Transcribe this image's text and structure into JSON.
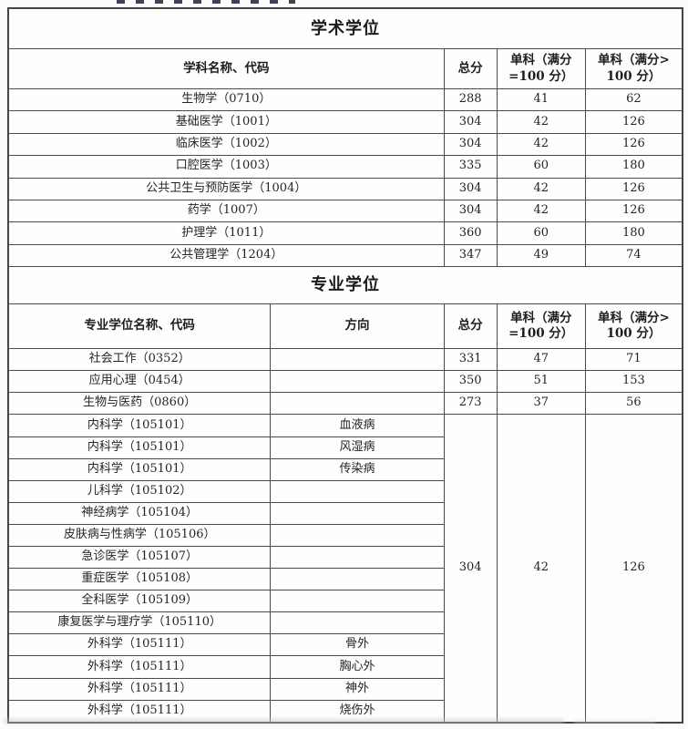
{
  "academic": {
    "title": "学术学位",
    "headers": [
      "学科名称、代码",
      "总分",
      "单科（满分\n=100 分）",
      "单科（满分>\n100 分）"
    ],
    "rows": [
      {
        "name": "生物学（0710）",
        "total": "288",
        "single100": "41",
        "singleOver100": "62"
      },
      {
        "name": "基础医学（1001）",
        "total": "304",
        "single100": "42",
        "singleOver100": "126"
      },
      {
        "name": "临床医学（1002）",
        "total": "304",
        "single100": "42",
        "singleOver100": "126"
      },
      {
        "name": "口腔医学（1003）",
        "total": "335",
        "single100": "60",
        "singleOver100": "180"
      },
      {
        "name": "公共卫生与预防医学（1004）",
        "total": "304",
        "single100": "42",
        "singleOver100": "126"
      },
      {
        "name": "药学（1007）",
        "total": "304",
        "single100": "42",
        "singleOver100": "126"
      },
      {
        "name": "护理学（1011）",
        "total": "360",
        "single100": "60",
        "singleOver100": "180"
      },
      {
        "name": "公共管理学（1204）",
        "total": "347",
        "single100": "49",
        "singleOver100": "74"
      }
    ]
  },
  "professional": {
    "title": "专业学位",
    "headers": [
      "专业学位名称、代码",
      "方向",
      "总分",
      "单科（满分\n=100 分）",
      "单科（满分>\n100 分）"
    ],
    "rows": [
      {
        "name": "社会工作（0352）",
        "direction": "",
        "total": "331",
        "single100": "47",
        "singleOver100": "71"
      },
      {
        "name": "应用心理（0454）",
        "direction": "",
        "total": "350",
        "single100": "51",
        "singleOver100": "153"
      },
      {
        "name": "生物与医药（0860）",
        "direction": "",
        "total": "273",
        "single100": "37",
        "singleOver100": "56"
      },
      {
        "name": "内科学（105101）",
        "direction": "血液病",
        "merged_start": true
      },
      {
        "name": "内科学（105101）",
        "direction": "风湿病"
      },
      {
        "name": "内科学（105101）",
        "direction": "传染病"
      },
      {
        "name": "儿科学（105102）",
        "direction": ""
      },
      {
        "name": "神经病学（105104）",
        "direction": ""
      },
      {
        "name": "皮肤病与性病学（105106）",
        "direction": ""
      },
      {
        "name": "急诊医学（105107）",
        "direction": ""
      },
      {
        "name": "重症医学（105108）",
        "direction": ""
      },
      {
        "name": "全科医学（105109）",
        "direction": ""
      },
      {
        "name": "康复医学与理疗学（105110）",
        "direction": ""
      },
      {
        "name": "外科学（105111）",
        "direction": "骨外"
      },
      {
        "name": "外科学（105111）",
        "direction": "胸心外"
      },
      {
        "name": "外科学（105111）",
        "direction": "神外"
      },
      {
        "name": "外科学（105111）",
        "direction": "烧伤外"
      }
    ],
    "merged_scores": {
      "total": "304",
      "single100": "42",
      "singleOver100": "126",
      "row_span": 14
    }
  }
}
